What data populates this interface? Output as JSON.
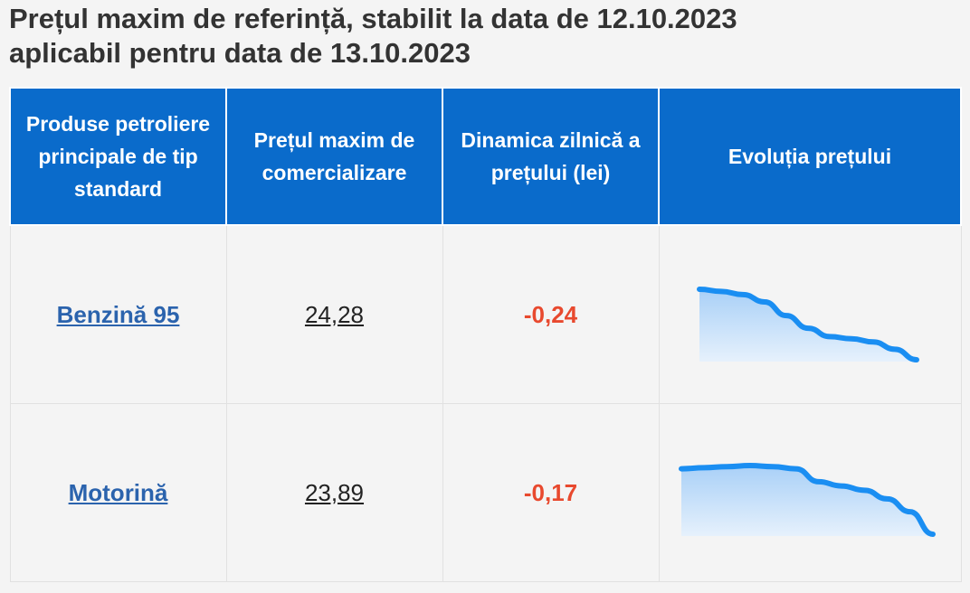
{
  "title": {
    "line1": "Prețul maxim de referință, stabilit la data de 12.10.2023",
    "line2": "aplicabil pentru data de 13.10.2023"
  },
  "table": {
    "headers": [
      "Produse petroliere principale de tip standard",
      "Prețul maxim de comercializare",
      "Dinamica zilnică a prețului (lei)",
      "Evoluția prețului"
    ],
    "rows": [
      {
        "product": "Benzină 95",
        "price": "24,28",
        "change": "-0,24",
        "trend": [
          24.95,
          24.93,
          24.9,
          24.83,
          24.7,
          24.58,
          24.5,
          24.48,
          24.45,
          24.38,
          24.28
        ]
      },
      {
        "product": "Motorină",
        "price": "23,89",
        "change": "-0,17",
        "trend": [
          24.5,
          24.51,
          24.52,
          24.53,
          24.52,
          24.5,
          24.38,
          24.34,
          24.3,
          24.22,
          24.1,
          23.89
        ]
      }
    ]
  },
  "colors": {
    "header_bg": "#0a6bcb",
    "link": "#2b63ad",
    "negative": "#e8492e",
    "spark_line": "#1a8ef2",
    "spark_fill": "#cfe4fb"
  }
}
